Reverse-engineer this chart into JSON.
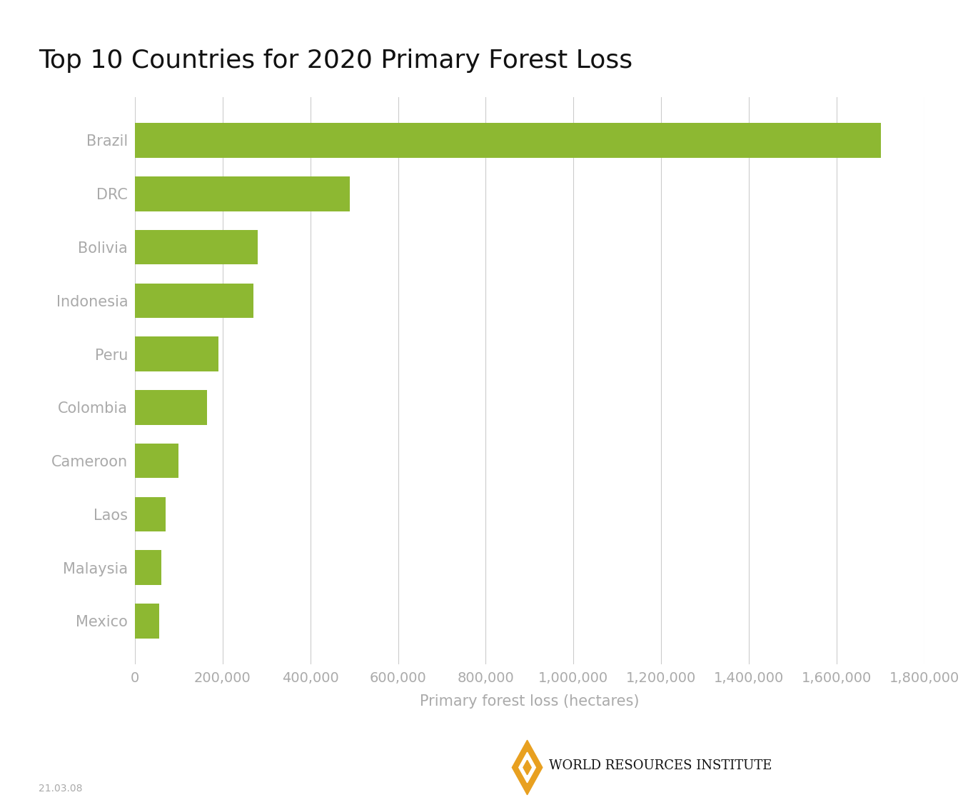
{
  "title": "Top 10 Countries for 2020 Primary Forest Loss",
  "countries": [
    "Brazil",
    "DRC",
    "Bolivia",
    "Indonesia",
    "Peru",
    "Colombia",
    "Cameroon",
    "Laos",
    "Malaysia",
    "Mexico"
  ],
  "values": [
    1700000,
    490000,
    280000,
    270000,
    190000,
    165000,
    100000,
    70000,
    60000,
    55000
  ],
  "bar_color": "#8db832",
  "xlabel": "Primary forest loss (hectares)",
  "ylabel": "",
  "xlim": [
    0,
    1800000
  ],
  "xticks": [
    0,
    200000,
    400000,
    600000,
    800000,
    1000000,
    1200000,
    1400000,
    1600000,
    1800000
  ],
  "title_fontsize": 26,
  "label_fontsize": 15,
  "tick_fontsize": 14,
  "tick_color": "#aaaaaa",
  "label_color": "#aaaaaa",
  "grid_color": "#cccccc",
  "background_color": "#ffffff",
  "date_label": "21.03.08",
  "bar_height": 0.65
}
